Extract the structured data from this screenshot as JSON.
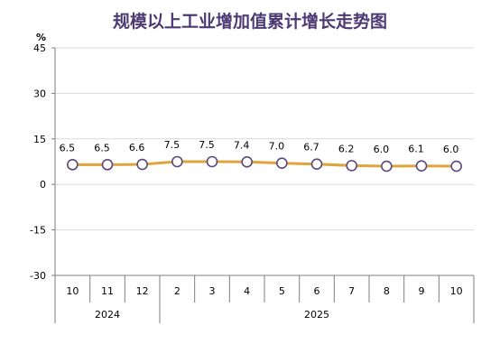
{
  "chart_data": {
    "type": "line",
    "title": "规模以上工业增加值累计增长走势图",
    "ylabel": "%",
    "ylim": [
      -30,
      45
    ],
    "yticks": [
      45,
      30,
      15,
      0,
      -15,
      -30
    ],
    "grid": true,
    "categories": [
      "10",
      "11",
      "12",
      "2",
      "3",
      "4",
      "5",
      "6",
      "7",
      "8",
      "9",
      "10"
    ],
    "year_groups": [
      {
        "label": "2024",
        "count": 3
      },
      {
        "label": "2025",
        "count": 9
      }
    ],
    "series": [
      {
        "values": [
          6.5,
          6.5,
          6.6,
          7.5,
          7.5,
          7.4,
          7.0,
          6.7,
          6.2,
          6.0,
          6.1,
          6.0
        ],
        "labels": [
          "6.5",
          "6.5",
          "6.6",
          "7.5",
          "7.5",
          "7.4",
          "7.0",
          "6.7",
          "6.2",
          "6.0",
          "6.1",
          "6.0"
        ]
      }
    ],
    "colors": {
      "line": "#e0a43c",
      "marker_fill": "#ffffff",
      "marker_stroke": "#5b4a7a",
      "grid": "#d9d9d9",
      "axis": "#7f7f7f",
      "title": "#4b3a73"
    }
  }
}
